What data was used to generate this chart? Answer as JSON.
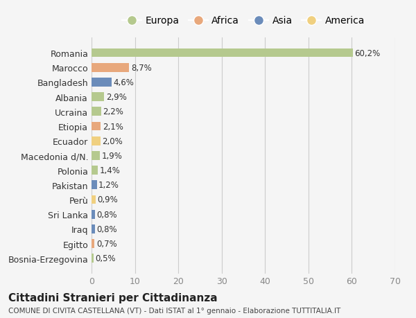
{
  "countries": [
    "Romania",
    "Marocco",
    "Bangladesh",
    "Albania",
    "Ucraina",
    "Etiopia",
    "Ecuador",
    "Macedonia d/N.",
    "Polonia",
    "Pakistan",
    "Perù",
    "Sri Lanka",
    "Iraq",
    "Egitto",
    "Bosnia-Erzegovina"
  ],
  "values": [
    60.2,
    8.7,
    4.6,
    2.9,
    2.2,
    2.1,
    2.0,
    1.9,
    1.4,
    1.2,
    0.9,
    0.8,
    0.8,
    0.7,
    0.5
  ],
  "labels": [
    "60,2%",
    "8,7%",
    "4,6%",
    "2,9%",
    "2,2%",
    "2,1%",
    "2,0%",
    "1,9%",
    "1,4%",
    "1,2%",
    "0,9%",
    "0,8%",
    "0,8%",
    "0,7%",
    "0,5%"
  ],
  "continents": [
    "Europa",
    "Africa",
    "Asia",
    "Europa",
    "Europa",
    "Africa",
    "America",
    "Europa",
    "Europa",
    "Asia",
    "America",
    "Asia",
    "Asia",
    "Africa",
    "Europa"
  ],
  "continent_colors": {
    "Europa": "#b5c98e",
    "Africa": "#e8a87c",
    "Asia": "#6b8cba",
    "America": "#f0d080"
  },
  "legend_order": [
    "Europa",
    "Africa",
    "Asia",
    "America"
  ],
  "title": "Cittadini Stranieri per Cittadinanza",
  "subtitle": "COMUNE DI CIVITA CASTELLANA (VT) - Dati ISTAT al 1° gennaio - Elaborazione TUTTITALIA.IT",
  "xlim": [
    0,
    70
  ],
  "xticks": [
    0,
    10,
    20,
    30,
    40,
    50,
    60,
    70
  ],
  "background_color": "#f5f5f5",
  "grid_color": "#cccccc"
}
